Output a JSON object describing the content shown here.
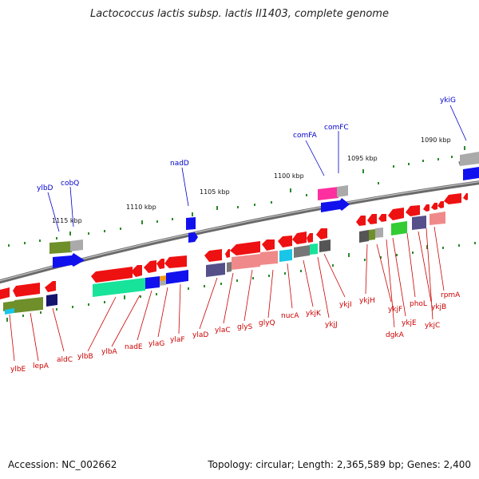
{
  "title": "Lactococcus lactis subsp. lactis Il1403, complete genome",
  "footer": {
    "accession": "Accession: NC_002662",
    "topology": "Topology: circular; Length: 2,365,589 bp; Genes: 2,400"
  },
  "scale_labels": [
    "1115 kbp",
    "1110 kbp",
    "1105 kbp",
    "1100 kbp",
    "1095 kbp",
    "1090 kbp"
  ],
  "genes_top": [
    "ylbD",
    "cobQ",
    "nadD",
    "comFA",
    "comFC",
    "ykiG"
  ],
  "genes_bottom": [
    "ylbE",
    "lepA",
    "aldC",
    "ylbB",
    "ylbA",
    "nadE",
    "ylaG",
    "ylaF",
    "ylaD",
    "ylaC",
    "glyS",
    "glyQ",
    "nucA",
    "ykjK",
    "ykjJ",
    "ykjI",
    "ykjH",
    "ykjF",
    "dgkA",
    "ykjE",
    "phoL",
    "ykjB",
    "ykjC",
    "rpmA"
  ],
  "colors": {
    "backbone": "#8a8a8a",
    "red_gene": "#ee1111",
    "blue_gene": "#1111ee",
    "green_gene": "#17e39a",
    "olive_gene": "#6e8f2a",
    "navy_gene": "#14146e",
    "pink_gene": "#ff2f9f",
    "salmon_gene": "#f08a8a",
    "gray_gene": "#aaaaaa",
    "purple_gene": "#55508a",
    "cyan_gene": "#19c6e8",
    "lime_gene": "#33cc33",
    "orange_gene": "#f39a18"
  }
}
